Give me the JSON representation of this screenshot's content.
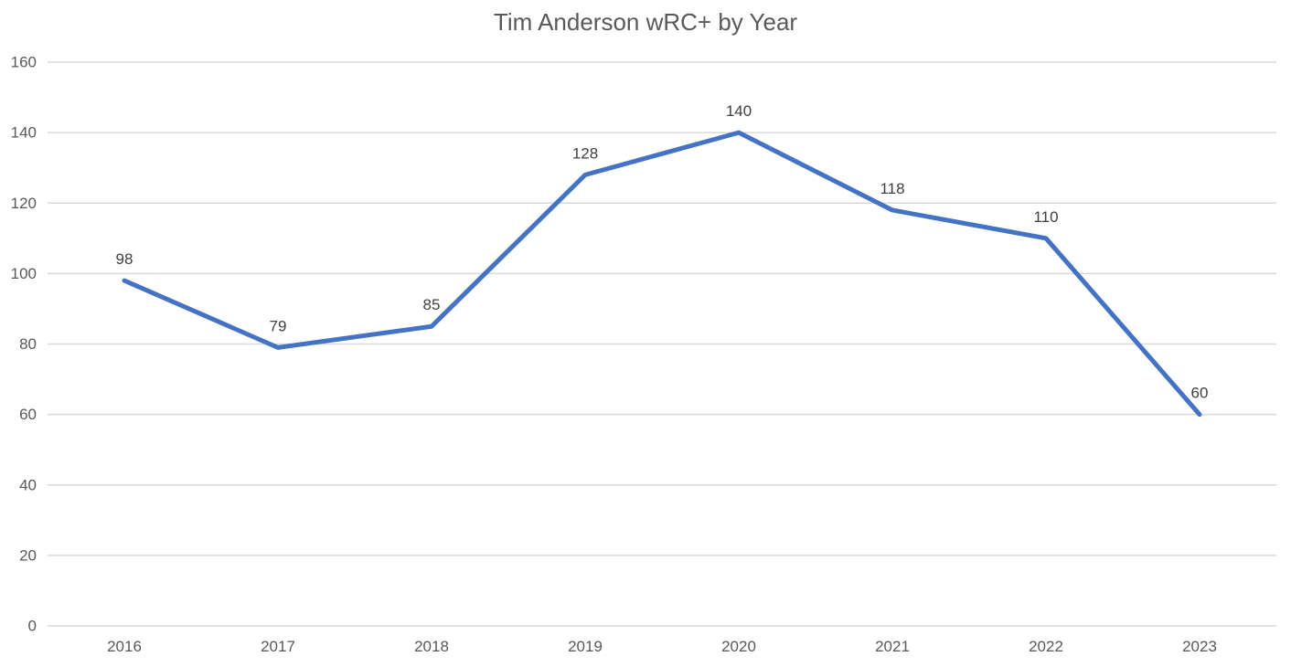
{
  "chart_data": {
    "type": "line",
    "title": "Tim Anderson wRC+ by Year",
    "categories": [
      "2016",
      "2017",
      "2018",
      "2019",
      "2020",
      "2021",
      "2022",
      "2023"
    ],
    "series": [
      {
        "name": "wRC+",
        "values": [
          98,
          79,
          85,
          128,
          140,
          118,
          110,
          60
        ]
      }
    ],
    "data_labels": [
      98,
      79,
      85,
      128,
      140,
      118,
      110,
      60
    ],
    "xlabel": "",
    "ylabel": "",
    "ylim": [
      0,
      160
    ],
    "ytick_step": 20,
    "yticks": [
      0,
      20,
      40,
      60,
      80,
      100,
      120,
      140,
      160
    ],
    "grid": true,
    "legend_position": "none",
    "colors": {
      "line": "#4472C4",
      "gridline": "#D9D9D9",
      "axis_line": "#D9D9D9",
      "axis_text": "#595959",
      "title_text": "#595959",
      "data_label_text": "#404040",
      "background": "#ffffff"
    }
  }
}
